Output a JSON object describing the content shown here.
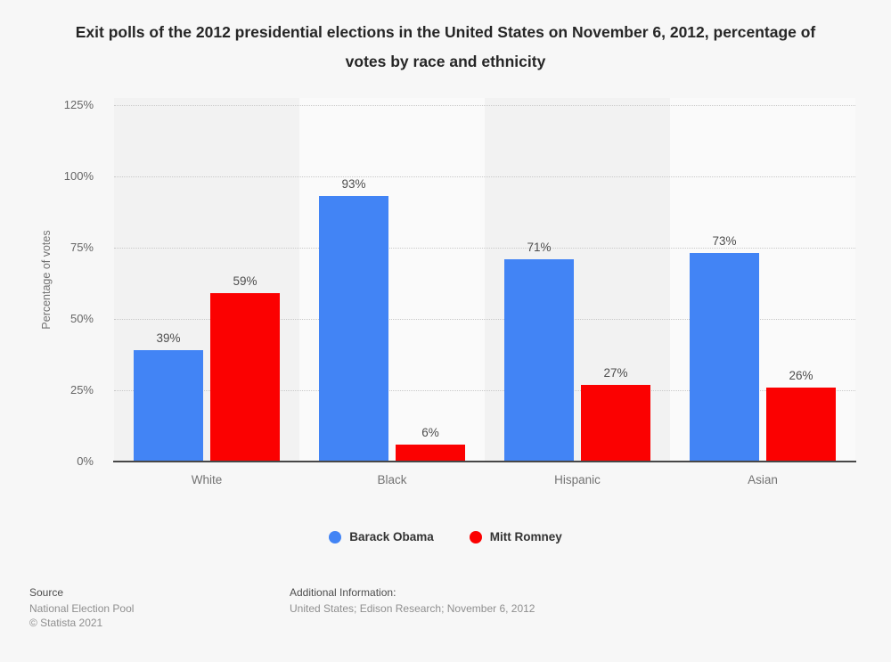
{
  "title": "Exit polls of the 2012 presidential elections in the United States on November 6, 2012, percentage of votes by race and ethnicity",
  "chart_data": {
    "type": "bar",
    "title": "Exit polls of the 2012 presidential elections in the United States on November 6, 2012, percentage of votes by race and ethnicity",
    "categories": [
      "White",
      "Black",
      "Hispanic",
      "Asian"
    ],
    "series": [
      {
        "name": "Barack Obama",
        "color": "#4284f5",
        "values": [
          39,
          93,
          71,
          73
        ]
      },
      {
        "name": "Mitt Romney",
        "color": "#fb0101",
        "values": [
          59,
          6,
          27,
          26
        ]
      }
    ],
    "value_label_format": "{v}%",
    "unit": "%",
    "xlabel": "",
    "ylabel": "Percentage of votes",
    "yticks": [
      0,
      25,
      50,
      75,
      100,
      125
    ],
    "ytick_labels": [
      "0%",
      "25%",
      "50%",
      "75%",
      "100%",
      "125%"
    ],
    "ylim": [
      0,
      127.5
    ],
    "grid": "horizontal-dotted",
    "legend_position": "bottom"
  },
  "footer": {
    "source_label": "Source",
    "source_name": "National Election Pool",
    "copyright": "© Statista 2021",
    "additional_label": "Additional Information:",
    "additional_text": "United States; Edison Research; November 6, 2012"
  }
}
